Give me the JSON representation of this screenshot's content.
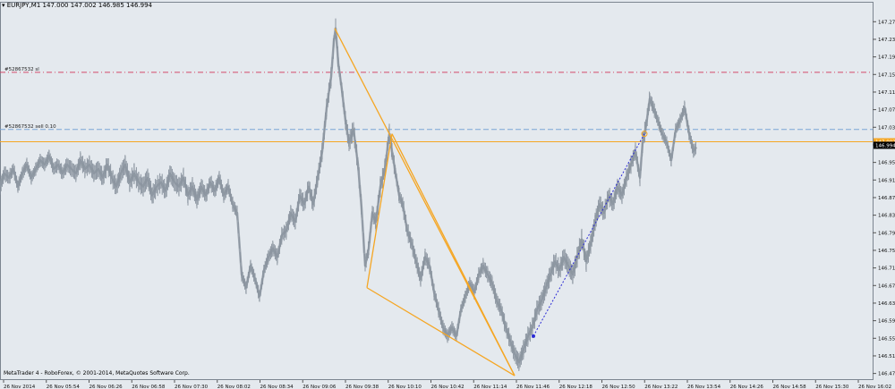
{
  "chart_data": {
    "type": "candlestick",
    "title": "EURJPY,M1",
    "ohlc_text": "147.000 147.002 146.985 146.994",
    "ylim": [
      146.46,
      147.3
    ],
    "y_ticks": [
      "147.275",
      "147.235",
      "147.195",
      "147.155",
      "147.115",
      "147.075",
      "147.035",
      "146.995",
      "146.955",
      "146.915",
      "146.875",
      "146.835",
      "146.795",
      "146.755",
      "146.715",
      "146.675",
      "146.635",
      "146.595",
      "146.555",
      "146.515",
      "146.475"
    ],
    "x_ticks": [
      "26 Nov 2014",
      "26 Nov 05:54",
      "26 Nov 06:26",
      "26 Nov 06:58",
      "26 Nov 07:30",
      "26 Nov 08:02",
      "26 Nov 08:34",
      "26 Nov 09:06",
      "26 Nov 09:38",
      "26 Nov 10:10",
      "26 Nov 10:42",
      "26 Nov 11:14",
      "26 Nov 11:46",
      "26 Nov 12:18",
      "26 Nov 12:50",
      "26 Nov 13:22",
      "26 Nov 13:54",
      "26 Nov 14:26",
      "26 Nov 14:58",
      "26 Nov 15:30",
      "26 Nov 16:02"
    ],
    "price_path": [
      [
        0,
        146.9
      ],
      [
        5,
        146.93
      ],
      [
        10,
        146.92
      ],
      [
        15,
        146.94
      ],
      [
        20,
        146.9
      ],
      [
        25,
        146.93
      ],
      [
        30,
        146.95
      ],
      [
        35,
        146.92
      ],
      [
        40,
        146.94
      ],
      [
        45,
        146.96
      ],
      [
        50,
        146.95
      ],
      [
        55,
        146.97
      ],
      [
        60,
        146.94
      ],
      [
        65,
        146.95
      ],
      [
        70,
        146.93
      ],
      [
        75,
        146.95
      ],
      [
        80,
        146.94
      ],
      [
        85,
        146.93
      ],
      [
        90,
        146.96
      ],
      [
        95,
        146.94
      ],
      [
        100,
        146.95
      ],
      [
        105,
        146.93
      ],
      [
        110,
        146.94
      ],
      [
        115,
        146.92
      ],
      [
        120,
        146.95
      ],
      [
        125,
        146.92
      ],
      [
        130,
        146.9
      ],
      [
        135,
        146.93
      ],
      [
        140,
        146.95
      ],
      [
        145,
        146.91
      ],
      [
        150,
        146.93
      ],
      [
        155,
        146.91
      ],
      [
        160,
        146.9
      ],
      [
        165,
        146.92
      ],
      [
        170,
        146.88
      ],
      [
        175,
        146.9
      ],
      [
        180,
        146.91
      ],
      [
        185,
        146.89
      ],
      [
        190,
        146.93
      ],
      [
        195,
        146.91
      ],
      [
        200,
        146.9
      ],
      [
        205,
        146.92
      ],
      [
        210,
        146.88
      ],
      [
        215,
        146.9
      ],
      [
        220,
        146.87
      ],
      [
        225,
        146.9
      ],
      [
        230,
        146.88
      ],
      [
        235,
        146.91
      ],
      [
        240,
        146.89
      ],
      [
        245,
        146.92
      ],
      [
        250,
        146.88
      ],
      [
        255,
        146.9
      ],
      [
        260,
        146.86
      ],
      [
        265,
        146.84
      ],
      [
        270,
        146.7
      ],
      [
        275,
        146.67
      ],
      [
        280,
        146.72
      ],
      [
        285,
        146.69
      ],
      [
        290,
        146.65
      ],
      [
        295,
        146.71
      ],
      [
        300,
        146.74
      ],
      [
        305,
        146.76
      ],
      [
        310,
        146.74
      ],
      [
        315,
        146.79
      ],
      [
        320,
        146.8
      ],
      [
        325,
        146.84
      ],
      [
        330,
        146.82
      ],
      [
        335,
        146.88
      ],
      [
        340,
        146.86
      ],
      [
        345,
        146.9
      ],
      [
        350,
        146.86
      ],
      [
        355,
        146.92
      ],
      [
        360,
        146.98
      ],
      [
        365,
        147.08
      ],
      [
        370,
        147.15
      ],
      [
        373,
        147.23
      ],
      [
        375,
        147.26
      ],
      [
        378,
        147.18
      ],
      [
        382,
        147.12
      ],
      [
        386,
        147.05
      ],
      [
        390,
        147.0
      ],
      [
        395,
        147.03
      ],
      [
        400,
        146.95
      ],
      [
        404,
        146.85
      ],
      [
        408,
        146.72
      ],
      [
        412,
        146.76
      ],
      [
        416,
        146.84
      ],
      [
        420,
        146.82
      ],
      [
        425,
        146.9
      ],
      [
        430,
        146.94
      ],
      [
        435,
        147.02
      ],
      [
        438,
        146.98
      ],
      [
        442,
        146.93
      ],
      [
        446,
        146.88
      ],
      [
        450,
        146.86
      ],
      [
        455,
        146.8
      ],
      [
        460,
        146.77
      ],
      [
        465,
        146.73
      ],
      [
        470,
        146.69
      ],
      [
        475,
        146.74
      ],
      [
        480,
        146.72
      ],
      [
        485,
        146.66
      ],
      [
        490,
        146.62
      ],
      [
        495,
        146.58
      ],
      [
        500,
        146.56
      ],
      [
        505,
        146.58
      ],
      [
        510,
        146.56
      ],
      [
        515,
        146.62
      ],
      [
        520,
        146.65
      ],
      [
        525,
        146.68
      ],
      [
        530,
        146.66
      ],
      [
        535,
        146.7
      ],
      [
        540,
        146.72
      ],
      [
        545,
        146.7
      ],
      [
        550,
        146.68
      ],
      [
        555,
        146.64
      ],
      [
        560,
        146.62
      ],
      [
        565,
        146.58
      ],
      [
        570,
        146.55
      ],
      [
        575,
        146.52
      ],
      [
        580,
        146.5
      ],
      [
        585,
        146.53
      ],
      [
        590,
        146.56
      ],
      [
        595,
        146.58
      ],
      [
        600,
        146.62
      ],
      [
        605,
        146.64
      ],
      [
        610,
        146.67
      ],
      [
        615,
        146.7
      ],
      [
        620,
        146.73
      ],
      [
        625,
        146.71
      ],
      [
        630,
        146.74
      ],
      [
        635,
        146.72
      ],
      [
        640,
        146.7
      ],
      [
        645,
        146.74
      ],
      [
        650,
        146.78
      ],
      [
        655,
        146.73
      ],
      [
        660,
        146.77
      ],
      [
        665,
        146.82
      ],
      [
        670,
        146.86
      ],
      [
        675,
        146.84
      ],
      [
        680,
        146.88
      ],
      [
        685,
        146.86
      ],
      [
        690,
        146.9
      ],
      [
        695,
        146.88
      ],
      [
        700,
        146.92
      ],
      [
        705,
        146.95
      ],
      [
        710,
        146.98
      ],
      [
        715,
        146.92
      ],
      [
        718,
        147.0
      ],
      [
        722,
        147.04
      ],
      [
        726,
        147.1
      ],
      [
        730,
        147.08
      ],
      [
        735,
        147.05
      ],
      [
        740,
        147.02
      ],
      [
        745,
        147.0
      ],
      [
        750,
        146.96
      ],
      [
        755,
        147.03
      ],
      [
        760,
        147.05
      ],
      [
        765,
        147.08
      ],
      [
        770,
        147.02
      ],
      [
        775,
        146.98
      ],
      [
        778,
        146.99
      ]
    ],
    "pattern_lines": [
      {
        "from": [
          374,
          147.26
        ],
        "to": [
          575,
          146.47
        ],
        "color": "#f5a623"
      },
      {
        "from": [
          410,
          146.67
        ],
        "to": [
          575,
          146.47
        ],
        "color": "#f5a623"
      },
      {
        "from": [
          438,
          147.02
        ],
        "to": [
          410,
          146.67
        ],
        "color": "#f5a623"
      },
      {
        "from": [
          438,
          147.02
        ],
        "to": [
          575,
          146.47
        ],
        "color": "#f5a623"
      }
    ],
    "trend_line": {
      "from": [
        596,
        146.56
      ],
      "to": [
        720,
        147.02
      ],
      "color": "#2b2bd6"
    },
    "h_lines": [
      {
        "price": 147.16,
        "label": "#52867532 sl",
        "color": "#d24a6a",
        "dash": "6,3,1,3",
        "label_x": 5
      },
      {
        "price": 147.03,
        "label": "#52867532 sell 0.10",
        "color": "#7aa6d6",
        "dash": "6,3",
        "label_x": 5
      },
      {
        "price": 147.002,
        "label": "",
        "color": "#f5a623",
        "dash": "",
        "label_x": 0
      }
    ],
    "price_markers": [
      {
        "price": 147.002,
        "text": "147.002",
        "bg": "#f5a623",
        "fg": "#ffffff"
      },
      {
        "price": 146.994,
        "text": "146.994",
        "bg": "#000000",
        "fg": "#ffffff"
      }
    ]
  },
  "footer_text": "MetaTrader 4 - RoboForex, © 2001-2014, MetaQuotes Software Corp."
}
